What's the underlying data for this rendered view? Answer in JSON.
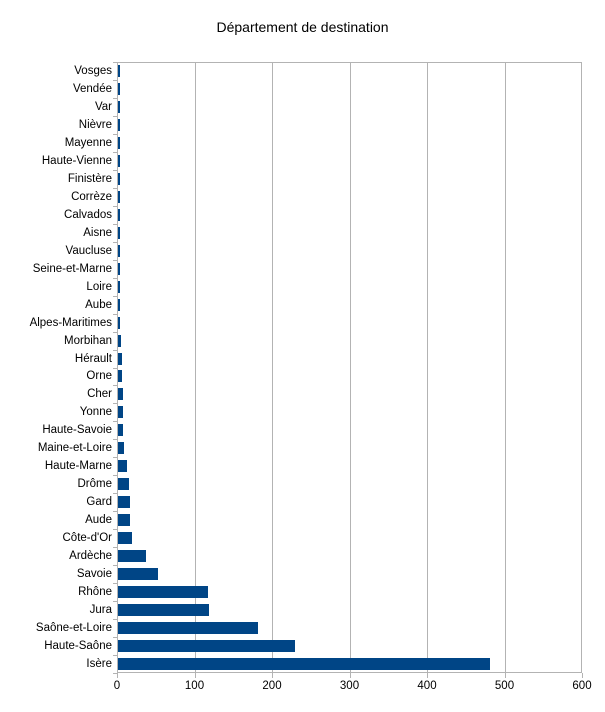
{
  "chart_data": {
    "type": "bar",
    "orientation": "horizontal",
    "title": "Département de destination",
    "xlabel": "",
    "ylabel": "",
    "xlim": [
      0,
      600
    ],
    "x_ticks": [
      0,
      100,
      200,
      300,
      400,
      500,
      600
    ],
    "grid": "vertical",
    "legend": "none",
    "categories": [
      "Vosges",
      "Vendée",
      "Var",
      "Nièvre",
      "Mayenne",
      "Haute-Vienne",
      "Finistère",
      "Corrèze",
      "Calvados",
      "Aisne",
      "Vaucluse",
      "Seine-et-Marne",
      "Loire",
      "Aube",
      "Alpes-Maritimes",
      "Morbihan",
      "Hérault",
      "Orne",
      "Cher",
      "Yonne",
      "Haute-Savoie",
      "Maine-et-Loire",
      "Haute-Marne",
      "Drôme",
      "Gard",
      "Aude",
      "Côte-d'Or",
      "Ardèche",
      "Savoie",
      "Rhône",
      "Jura",
      "Saône-et-Loire",
      "Haute-Saône",
      "Isère"
    ],
    "values": [
      2,
      2,
      2,
      2,
      2,
      2,
      2,
      2,
      2,
      2,
      3,
      3,
      3,
      3,
      3,
      4,
      5,
      5,
      6,
      6,
      7,
      8,
      11,
      14,
      15,
      16,
      18,
      36,
      51,
      116,
      117,
      180,
      228,
      480
    ],
    "colors": {
      "bar": "#004586",
      "grid": "#b3b3b3",
      "axis": "#b3b3b3",
      "text": "#000000",
      "background": "#ffffff"
    }
  }
}
